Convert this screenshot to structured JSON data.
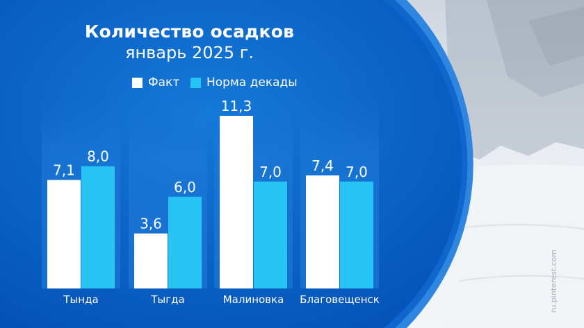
{
  "title": "Количество осадков",
  "subtitle": "январь 2025 г.",
  "watermark": "ru.pinterest.com",
  "colors": {
    "fact": "#ffffff",
    "norm": "#27c4f4",
    "panel": "#0a63c8"
  },
  "chart_data": {
    "type": "bar",
    "categories": [
      "Тында",
      "Тыгда",
      "Малиновка",
      "Благовещенск"
    ],
    "series": [
      {
        "name": "Факт",
        "values": [
          7.1,
          3.6,
          11.3,
          7.4
        ],
        "labels": [
          "7,1",
          "3,6",
          "11,3",
          "7,4"
        ]
      },
      {
        "name": "Норма декады",
        "values": [
          8.0,
          6.0,
          7.0,
          7.0
        ],
        "labels": [
          "8,0",
          "6,0",
          "7,0",
          "7,0"
        ]
      }
    ],
    "ylim": [
      0,
      11.3
    ],
    "grid": false,
    "legend": "top"
  }
}
